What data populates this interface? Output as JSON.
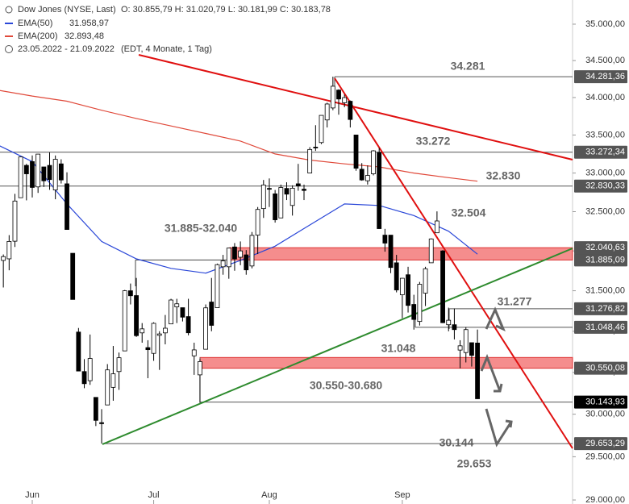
{
  "header": {
    "title": "Dow Jones (NYSE, Last)",
    "ohlc": "O: 30.855,79  H: 31.020,79  L: 30.181,99  C: 30.183,78",
    "period": "23.05.2022 - 21.09.2022",
    "period_note": "(EDT, 4 Monate, 1 Tag)"
  },
  "chart_data": {
    "type": "candlestick",
    "log_scale": true,
    "categories": [
      null,
      null,
      null,
      null,
      null,
      null,
      "Jun",
      null,
      null,
      null,
      null,
      null,
      null,
      null,
      null,
      null,
      null,
      null,
      null,
      null,
      null,
      null,
      null,
      null,
      null,
      null,
      null,
      "Jul",
      null,
      null,
      null,
      null,
      null,
      null,
      null,
      null,
      null,
      null,
      null,
      null,
      null,
      null,
      null,
      null,
      null,
      null,
      null,
      "Aug",
      null,
      null,
      null,
      null,
      null,
      null,
      null,
      null,
      null,
      null,
      null,
      null,
      null,
      null,
      null,
      null,
      null,
      null,
      null,
      null,
      null,
      null,
      "Sep",
      null,
      null,
      null,
      null,
      null,
      null,
      null,
      null,
      null,
      null,
      null,
      null,
      null
    ],
    "open": [
      31434,
      31880,
      31900,
      32123,
      32680,
      33100,
      33150,
      32820,
      33080,
      33100,
      32780,
      33120,
      32860,
      31970,
      30990,
      30510,
      30400,
      30200,
      29900,
      30110,
      30320,
      30510,
      30760,
      31500,
      31440,
      30980,
      30800,
      30730,
      30950,
      30980,
      31090,
      31300,
      31290,
      31180,
      30700,
      30470,
      30780,
      31360,
      31290,
      31800,
      31800,
      32050,
      31920,
      31950,
      31810,
      32200,
      32540,
      32800,
      32730,
      32420,
      32800,
      32580,
      32860,
      32790,
      33000,
      33340,
      33400,
      33700,
      33860,
      34100,
      33930,
      33950,
      33500,
      33050,
      32900,
      32990,
      33270,
      32200,
      32200,
      31850,
      31450,
      31700,
      31330,
      31120,
      31470,
      31850,
      32230,
      32000,
      31080,
      31080,
      30770,
      30740,
      30860,
      30855.79
    ],
    "high": [
      31885,
      31955,
      32200,
      32730,
      33213,
      33120,
      33230,
      33250,
      33080,
      33270,
      33230,
      33180,
      33010,
      31970,
      31040,
      30660,
      30960,
      30200,
      30060,
      30600,
      30820,
      30740,
      31510,
      31590,
      31660,
      31100,
      30890,
      31110,
      31000,
      31200,
      31400,
      31400,
      31290,
      31400,
      30860,
      30660,
      31330,
      31660,
      31840,
      31950,
      32040,
      32100,
      32120,
      32010,
      32240,
      32560,
      32910,
      32930,
      32780,
      32850,
      32880,
      32840,
      33120,
      32850,
      33340,
      33630,
      33762,
      33930,
      34281.36,
      34110,
      34040,
      33960,
      33500,
      33130,
      33100,
      33300,
      33330,
      32280,
      32200,
      31950,
      31660,
      31800,
      31450,
      31610,
      31800,
      32160,
      32504,
      32010,
      31290,
      31280,
      30890,
      31050,
      30860,
      31020.79
    ],
    "low": [
      31402,
      31541,
      31756,
      32050,
      32680,
      32646,
      32683,
      32742,
      32819,
      32782,
      32660,
      32864,
      32271,
      31393,
      30514,
      30310,
      30350,
      29860,
      29653.29,
      30110,
      30160,
      30290,
      30760,
      31330,
      30930,
      30860,
      30430,
      30640,
      30530,
      30840,
      31090,
      31100,
      31120,
      30950,
      30470,
      30143.93,
      30780,
      31000,
      31290,
      31700,
      31650,
      31750,
      31820,
      31700,
      31780,
      31960,
      32420,
      32560,
      32360,
      32420,
      32650,
      32450,
      32770,
      32650,
      33000,
      33290,
      33380,
      33600,
      33830,
      33770,
      33870,
      33600,
      33030,
      32900,
      32850,
      32970,
      32280,
      31990,
      31720,
      31480,
      31160,
      31230,
      31020,
      31070,
      31310,
      31850,
      32230,
      31100,
      31000,
      30900,
      30550,
      30620,
      30570,
      30181.99
    ],
    "close": [
      31880,
      31928,
      32120,
      32637,
      33212,
      32990,
      32813,
      33248,
      32899,
      32915,
      33180,
      32910,
      32272,
      31392,
      30516,
      30364,
      30668,
      29927,
      29888,
      30530,
      30483,
      30677,
      31500,
      31438,
      30946,
      31029,
      30775,
      31097,
      30967,
      31037,
      31385,
      31338,
      31173,
      30981,
      30772,
      30630,
      31288,
      31072,
      31827,
      31874,
      32036,
      31899,
      32000,
      31761,
      32197,
      32529,
      32845,
      32798,
      32396,
      32812,
      32726,
      32803,
      32832,
      32774,
      33309,
      33336,
      33761,
      33913,
      34152,
      33980,
      33999,
      33706,
      33063,
      32910,
      32969,
      33291,
      32283,
      32099,
      31791,
      31510,
      31656,
      31318,
      31145,
      31581,
      31775,
      32152,
      32381,
      31105,
      31135,
      31020,
      30822,
      31020,
      30706,
      30183.78
    ],
    "up_color": "#ffffff",
    "down_color": "#000000",
    "ylim": [
      28954,
      35336
    ],
    "yticks": [
      {
        "value": 29000,
        "label": "29.000,00"
      },
      {
        "value": 29500,
        "label": "29.500,00"
      },
      {
        "value": 30000,
        "label": "30.000,00"
      },
      {
        "value": 30500,
        "label": "30.500,00"
      },
      {
        "value": 31000,
        "label": "31.000,00"
      },
      {
        "value": 31500,
        "label": "31.500,00"
      },
      {
        "value": 32000,
        "label": "32.000,00"
      },
      {
        "value": 32500,
        "label": "32.500,00"
      },
      {
        "value": 33000,
        "label": "33.000,00"
      },
      {
        "value": 33500,
        "label": "33.500,00"
      },
      {
        "value": 34000,
        "label": "34.000,00"
      },
      {
        "value": 34500,
        "label": "34.500,00"
      },
      {
        "value": 35000,
        "label": "35.000,00"
      }
    ],
    "series": [
      {
        "name": "EMA(50)",
        "color": "#2a47d8",
        "value_label": "31.958,97",
        "x": [
          0,
          6,
          12,
          18,
          24,
          30,
          36,
          42,
          48,
          54,
          60,
          66,
          72,
          78,
          83
        ],
        "values": [
          33370,
          33150,
          32600,
          32120,
          31900,
          31780,
          31720,
          31880,
          32060,
          32330,
          32600,
          32580,
          32450,
          32250,
          31958.97
        ]
      },
      {
        "name": "EMA(200)",
        "color": "#e0493a",
        "value_label": "32.893,48",
        "x": [
          0,
          6,
          12,
          18,
          24,
          30,
          36,
          42,
          48,
          54,
          60,
          66,
          72,
          78,
          83
        ],
        "values": [
          34100,
          34020,
          33950,
          33830,
          33720,
          33620,
          33520,
          33420,
          33250,
          33170,
          33120,
          33080,
          33000,
          32940,
          32893.48
        ]
      }
    ],
    "levels": [
      {
        "value": 34281.36,
        "label": "34.281,36",
        "text": "34.281"
      },
      {
        "value": 33272.34,
        "label": "33.272,34",
        "text": "33.272"
      },
      {
        "value": 32830.33,
        "label": "32.830,33",
        "text": "32.830"
      },
      {
        "value": 31276.82,
        "label": "31.276,82",
        "text": "31.277"
      },
      {
        "value": 31048.46,
        "label": "31.048,46",
        "text": "31.048"
      },
      {
        "value": 30143.93,
        "label": "30.143,93",
        "text": "30.144"
      },
      {
        "value": 29653.29,
        "label": "29.653,29",
        "text": "29.653"
      }
    ],
    "zones": [
      {
        "from": 31885.09,
        "to": 32040.63,
        "from_label": "31.885,09",
        "to_label": "32.040,63",
        "text": "31.885-32.040"
      },
      {
        "from": 30550.08,
        "to": 30680,
        "from_label": "30.550,08",
        "text": "30.550-30.680"
      }
    ],
    "notes": [
      {
        "value": 32504,
        "text": "32.504"
      }
    ]
  }
}
